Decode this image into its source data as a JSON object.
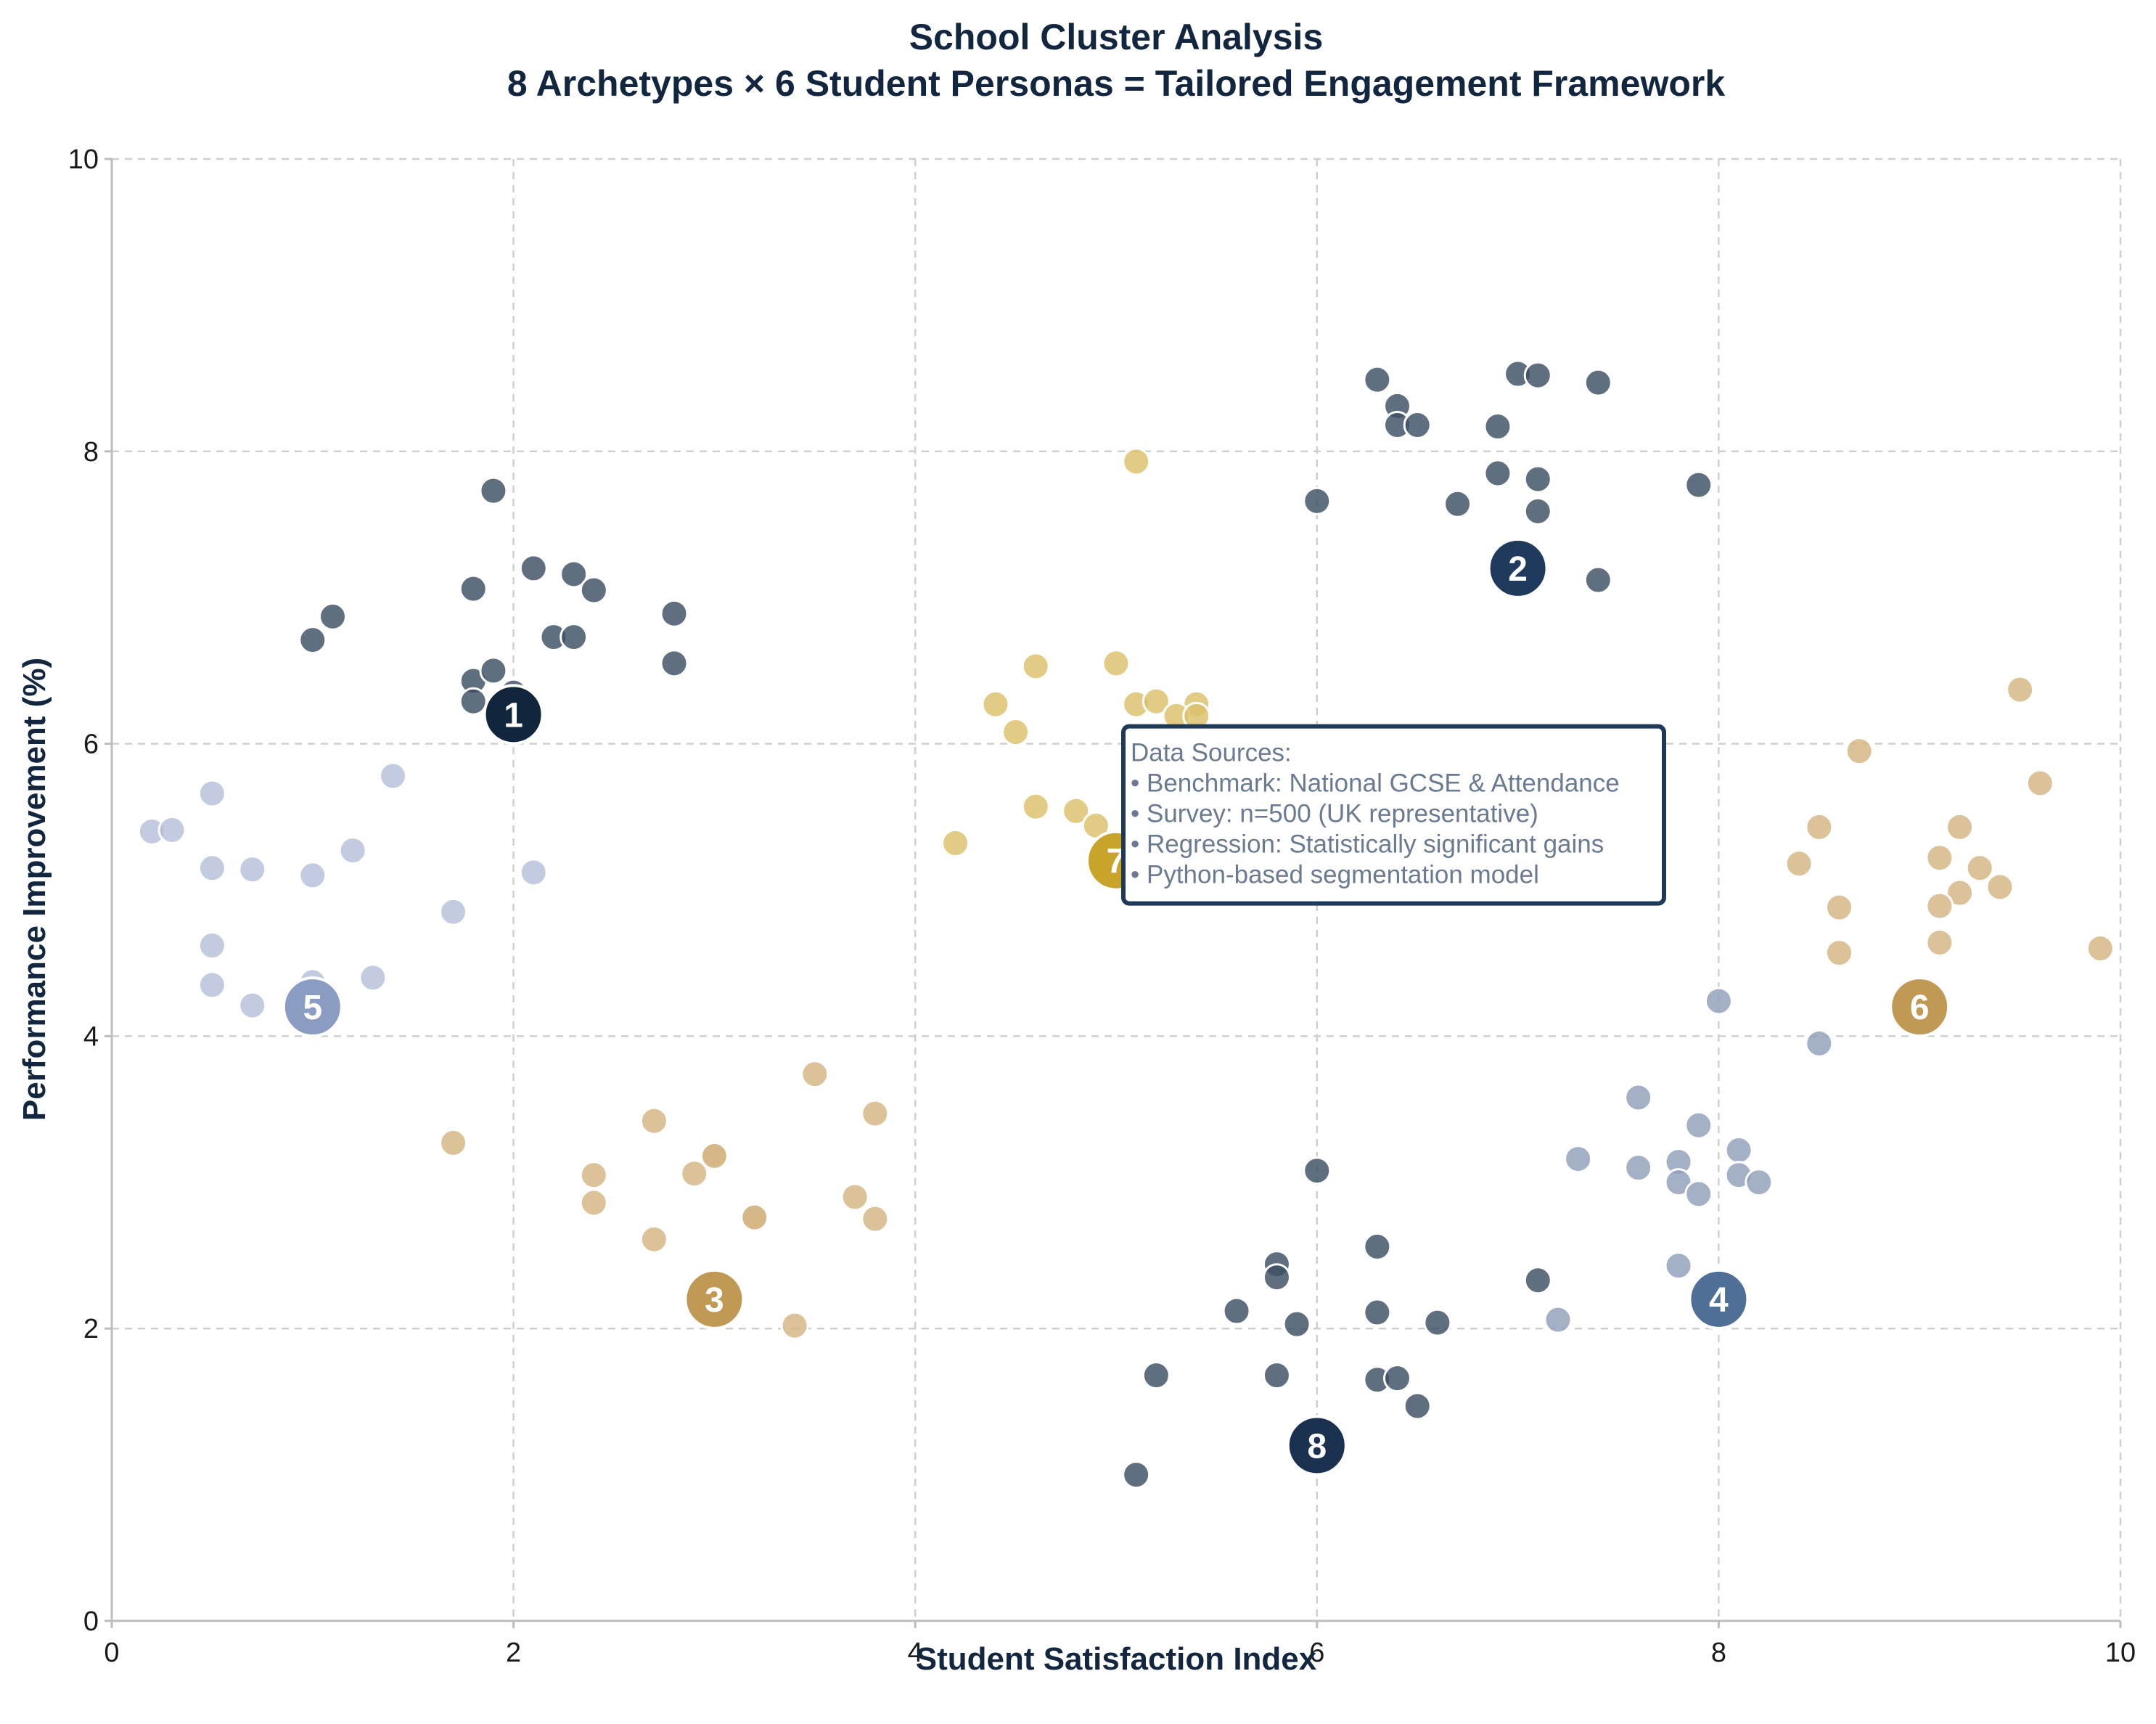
{
  "chart_data": {
    "type": "scatter",
    "title": "School Cluster Analysis",
    "subtitle": "8 Archetypes × 6 Student Personas = Tailored Engagement Framework",
    "xlabel": "Student Satisfaction Index",
    "ylabel": "Performance Improvement (%)",
    "xlim": [
      0,
      10
    ],
    "ylim": [
      0,
      10
    ],
    "x_ticks": [
      "0",
      "2",
      "4",
      "6",
      "8",
      "10"
    ],
    "y_ticks": [
      "0",
      "2",
      "4",
      "6",
      "8",
      "10"
    ],
    "grid": true,
    "annotation": {
      "lines": [
        "Data Sources:",
        "• Benchmark: National GCSE & Attendance",
        "• Survey: n=500 (UK representative)",
        "• Regression: Statistically significant gains",
        "• Python-based segmentation model"
      ],
      "anchor": [
        5.0,
        6.0
      ]
    },
    "series": [
      {
        "centroid_label": "1",
        "centroid": [
          2.0,
          6.2
        ],
        "color": "#3d4f63",
        "centroid_color": "#10263d",
        "points": [
          [
            1.9,
            7.73
          ],
          [
            1.1,
            6.87
          ],
          [
            1.0,
            6.71
          ],
          [
            1.8,
            7.06
          ],
          [
            2.1,
            7.2
          ],
          [
            2.3,
            7.16
          ],
          [
            2.4,
            7.05
          ],
          [
            2.8,
            6.89
          ],
          [
            2.2,
            6.73
          ],
          [
            2.3,
            6.73
          ],
          [
            1.8,
            6.43
          ],
          [
            1.8,
            6.29
          ],
          [
            1.9,
            6.5
          ],
          [
            2.0,
            6.35
          ],
          [
            2.8,
            6.55
          ]
        ]
      },
      {
        "centroid_label": "2",
        "centroid": [
          7.0,
          7.2
        ],
        "color": "#3d4f63",
        "centroid_color": "#1f3a5c",
        "points": [
          [
            6.3,
            8.49
          ],
          [
            6.4,
            8.31
          ],
          [
            6.4,
            8.18
          ],
          [
            6.5,
            8.18
          ],
          [
            7.0,
            8.53
          ],
          [
            7.1,
            8.52
          ],
          [
            7.4,
            8.47
          ],
          [
            6.9,
            8.17
          ],
          [
            6.0,
            7.66
          ],
          [
            6.7,
            7.64
          ],
          [
            6.9,
            7.85
          ],
          [
            7.1,
            7.81
          ],
          [
            7.1,
            7.59
          ],
          [
            7.9,
            7.77
          ],
          [
            7.4,
            7.12
          ]
        ]
      },
      {
        "centroid_label": "3",
        "centroid": [
          3.0,
          2.2
        ],
        "color": "#d4b582",
        "centroid_color": "#c09a55",
        "points": [
          [
            1.7,
            3.27
          ],
          [
            2.4,
            3.05
          ],
          [
            2.4,
            2.86
          ],
          [
            2.7,
            3.42
          ],
          [
            2.9,
            3.06
          ],
          [
            3.0,
            3.19
          ],
          [
            3.0,
            3.18
          ],
          [
            3.2,
            2.76
          ],
          [
            3.2,
            2.76
          ],
          [
            2.7,
            2.61
          ],
          [
            3.5,
            3.74
          ],
          [
            3.8,
            3.47
          ],
          [
            3.7,
            2.9
          ],
          [
            3.8,
            2.75
          ],
          [
            3.4,
            2.02
          ]
        ]
      },
      {
        "centroid_label": "4",
        "centroid": [
          8.0,
          2.2
        ],
        "color": "#8f9fba",
        "centroid_color": "#4f6f96",
        "points": [
          [
            8.0,
            4.24
          ],
          [
            8.5,
            3.95
          ],
          [
            7.6,
            3.58
          ],
          [
            7.9,
            3.39
          ],
          [
            8.1,
            3.22
          ],
          [
            7.3,
            3.16
          ],
          [
            7.6,
            3.1
          ],
          [
            7.8,
            3.14
          ],
          [
            7.8,
            3.0
          ],
          [
            7.9,
            2.92
          ],
          [
            8.1,
            3.05
          ],
          [
            8.2,
            3.0
          ],
          [
            7.8,
            2.43
          ],
          [
            7.2,
            2.06
          ]
        ]
      },
      {
        "centroid_label": "5",
        "centroid": [
          1.0,
          4.2
        ],
        "color": "#b4c0d8",
        "centroid_color": "#8a9cc2",
        "points": [
          [
            0.2,
            5.4
          ],
          [
            0.3,
            5.41
          ],
          [
            0.5,
            5.66
          ],
          [
            0.5,
            5.15
          ],
          [
            0.7,
            5.14
          ],
          [
            1.0,
            5.1
          ],
          [
            1.2,
            5.27
          ],
          [
            1.4,
            5.78
          ],
          [
            2.1,
            5.12
          ],
          [
            0.5,
            4.62
          ],
          [
            1.7,
            4.85
          ],
          [
            0.5,
            4.35
          ],
          [
            0.7,
            4.21
          ],
          [
            1.0,
            4.37
          ],
          [
            1.3,
            4.4
          ]
        ]
      },
      {
        "centroid_label": "6",
        "centroid": [
          9.0,
          4.2
        ],
        "color": "#d4b582",
        "centroid_color": "#c09a55",
        "points": [
          [
            8.7,
            5.95
          ],
          [
            9.5,
            6.37
          ],
          [
            9.6,
            5.73
          ],
          [
            8.5,
            5.43
          ],
          [
            9.2,
            5.43
          ],
          [
            8.4,
            5.18
          ],
          [
            9.1,
            5.22
          ],
          [
            9.3,
            5.15
          ],
          [
            9.2,
            4.98
          ],
          [
            9.4,
            5.02
          ],
          [
            8.6,
            4.88
          ],
          [
            9.1,
            4.89
          ],
          [
            8.6,
            4.57
          ],
          [
            9.1,
            4.64
          ],
          [
            9.9,
            4.6
          ]
        ]
      },
      {
        "centroid_label": "7",
        "centroid": [
          5.0,
          5.2
        ],
        "color": "#dcc06a",
        "centroid_color": "#c9a42a",
        "points": [
          [
            5.1,
            7.93
          ],
          [
            4.6,
            6.53
          ],
          [
            5.0,
            6.55
          ],
          [
            4.4,
            6.27
          ],
          [
            5.1,
            6.27
          ],
          [
            5.2,
            6.29
          ],
          [
            5.4,
            6.27
          ],
          [
            5.3,
            6.19
          ],
          [
            5.4,
            6.19
          ],
          [
            4.5,
            6.08
          ],
          [
            4.6,
            5.57
          ],
          [
            4.8,
            5.54
          ],
          [
            4.9,
            5.44
          ],
          [
            4.2,
            5.32
          ],
          [
            5.2,
            6.05
          ]
        ]
      },
      {
        "centroid_label": "8",
        "centroid": [
          6.0,
          1.2
        ],
        "color": "#3d4f63",
        "centroid_color": "#1a3150",
        "points": [
          [
            6.0,
            3.08
          ],
          [
            6.3,
            2.56
          ],
          [
            5.8,
            2.44
          ],
          [
            5.8,
            2.35
          ],
          [
            5.6,
            2.12
          ],
          [
            5.9,
            2.03
          ],
          [
            6.3,
            2.11
          ],
          [
            6.6,
            2.04
          ],
          [
            7.1,
            2.33
          ],
          [
            5.2,
            1.68
          ],
          [
            5.8,
            1.68
          ],
          [
            6.3,
            1.65
          ],
          [
            6.4,
            1.66
          ],
          [
            6.5,
            1.47
          ],
          [
            5.1,
            1.0
          ]
        ]
      }
    ]
  }
}
